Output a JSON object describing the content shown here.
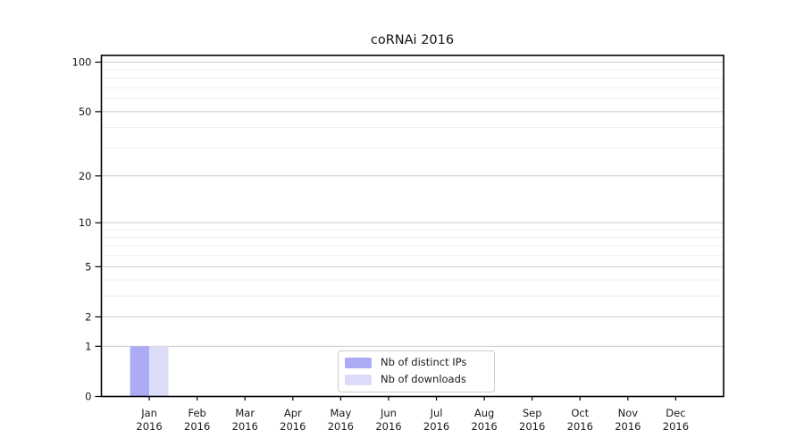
{
  "chart_data": {
    "type": "bar",
    "title": "coRNAi 2016",
    "x_tick_line1": [
      "Jan",
      "Feb",
      "Mar",
      "Apr",
      "May",
      "Jun",
      "Jul",
      "Aug",
      "Sep",
      "Oct",
      "Nov",
      "Dec"
    ],
    "x_tick_line2": [
      "2016",
      "2016",
      "2016",
      "2016",
      "2016",
      "2016",
      "2016",
      "2016",
      "2016",
      "2016",
      "2016",
      "2016"
    ],
    "series": [
      {
        "name": "Nb of distinct IPs",
        "color": "#acacf6",
        "values": [
          1,
          0,
          0,
          0,
          0,
          0,
          0,
          0,
          0,
          0,
          0,
          0
        ]
      },
      {
        "name": "Nb of downloads",
        "color": "#dcdcf9",
        "values": [
          1,
          0,
          0,
          0,
          0,
          0,
          0,
          0,
          0,
          0,
          0,
          0
        ]
      }
    ],
    "y_axis": {
      "scale": "log10(value+1)",
      "major_ticks": [
        0,
        1,
        2,
        5,
        10,
        20,
        50,
        100
      ],
      "minor_ticks": [
        3,
        4,
        6,
        7,
        8,
        9,
        30,
        40,
        60,
        70,
        80,
        90
      ],
      "range": [
        0,
        100
      ]
    },
    "legend": {
      "position": "bottom-center"
    },
    "style": {
      "grid_major_color": "#c9c9c9",
      "grid_minor_color": "#ededed",
      "axis_color": "#000000",
      "text_color": "#1a1a1a",
      "background": "#ffffff"
    }
  }
}
